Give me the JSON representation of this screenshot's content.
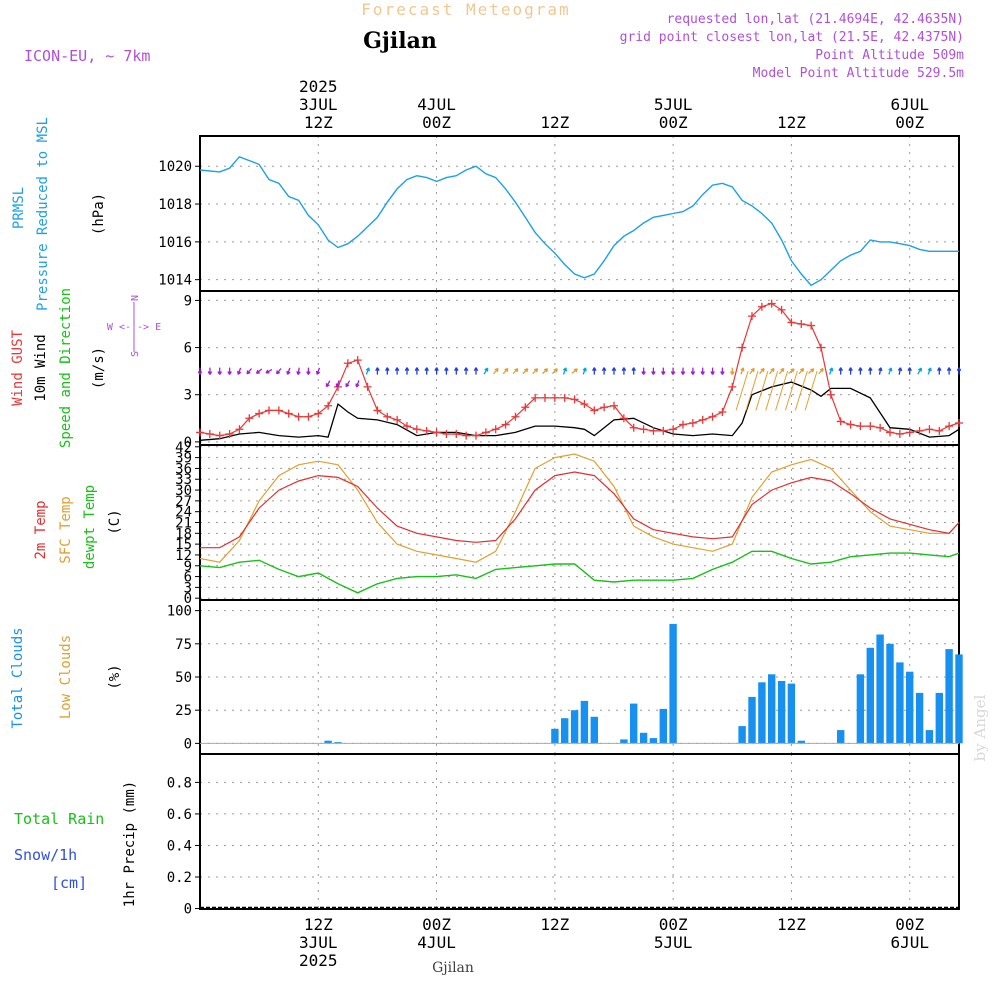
{
  "header": {
    "product": "Forecast Meteogram",
    "location": "Gjilan",
    "model": "ICON-EU, ~ 7km",
    "requested": "requested lon,lat (21.4694E, 42.4635N)",
    "grid_point": "grid point closest lon,lat (21.5E, 42.4375N)",
    "point_alt": "Point Altitude 509m",
    "model_alt": "Model Point Altitude 529.5m",
    "footer_location": "Gjilan",
    "watermark": "by Angel"
  },
  "time_axis": {
    "ticks": [
      {
        "hour": 12,
        "top": [
          "2025",
          "3JUL",
          "12Z"
        ],
        "bottom": [
          "12Z",
          "3JUL",
          "2025"
        ]
      },
      {
        "hour": 24,
        "top": [
          "4JUL",
          "00Z"
        ],
        "bottom": [
          "00Z",
          "4JUL"
        ]
      },
      {
        "hour": 36,
        "top": [
          "12Z"
        ],
        "bottom": [
          "12Z"
        ]
      },
      {
        "hour": 48,
        "top": [
          "5JUL",
          "00Z"
        ],
        "bottom": [
          "00Z",
          "5JUL"
        ]
      },
      {
        "hour": 60,
        "top": [
          "12Z"
        ],
        "bottom": [
          "12Z"
        ]
      },
      {
        "hour": 72,
        "top": [
          "6JUL",
          "00Z"
        ],
        "bottom": [
          "00Z",
          "6JUL"
        ]
      }
    ]
  },
  "panel_labels": {
    "pressure": {
      "lines": [
        "PRMSL",
        "Pressure Reduced to MSL"
      ],
      "unit": "(hPa)"
    },
    "wind": {
      "gust": "Wind GUST",
      "wind10": "10m Wind",
      "speed_dir": "Speed and Direction",
      "unit": "(m/s)",
      "compass": [
        "N",
        "W <-|-> E",
        "S"
      ]
    },
    "temp": {
      "t2m": "2m Temp",
      "sfc": "SFC Temp",
      "dewpt": "dewpt Temp",
      "unit": "(C)"
    },
    "clouds": {
      "total": "Total Clouds",
      "low": "Low Clouds",
      "unit": "(%)"
    },
    "precip": {
      "total_rain": "Total Rain",
      "snow": "Snow/1h",
      "snow_unit": "[cm]",
      "axis": "1hr Precip (mm)"
    }
  },
  "colors": {
    "pressure": "#1ea0e6",
    "gust": "#e83838",
    "wind10": "#000000",
    "t2m": "#e03030",
    "sfc": "#e0a030",
    "dewpt": "#18c018",
    "clouds": "#1890f0",
    "low_clouds": "#e0a030",
    "title_orange": "#f0c890",
    "violet": "#b050d8"
  },
  "chart_data": [
    {
      "type": "line",
      "name": "PRMSL",
      "ylabel": "(hPa)",
      "ylim": [
        1013.4,
        1021.6
      ],
      "yticks": [
        1014,
        1016,
        1018,
        1020
      ],
      "x_unit": "hours from 00Z 3JUL 2025",
      "x": [
        0,
        2,
        3,
        4,
        5,
        6,
        7,
        8,
        9,
        10,
        11,
        12,
        13,
        14,
        15,
        16,
        17,
        18,
        19,
        20,
        21,
        22,
        23,
        24,
        25,
        26,
        27,
        28,
        29,
        30,
        31,
        32,
        33,
        34,
        35,
        36,
        37,
        38,
        39,
        40,
        41,
        42,
        43,
        44,
        45,
        46,
        47,
        48,
        49,
        50,
        51,
        52,
        53,
        54,
        55,
        56,
        57,
        58,
        59,
        60,
        61,
        62,
        63,
        64,
        65,
        66,
        67,
        68,
        69,
        70,
        71,
        72,
        73,
        74,
        75,
        76,
        77
      ],
      "values": [
        1019.8,
        1019.7,
        1019.9,
        1020.5,
        1020.3,
        1020.1,
        1019.3,
        1019.1,
        1018.4,
        1018.2,
        1017.4,
        1016.9,
        1016.1,
        1015.7,
        1015.9,
        1016.3,
        1016.8,
        1017.3,
        1018.1,
        1018.8,
        1019.3,
        1019.5,
        1019.4,
        1019.2,
        1019.4,
        1019.5,
        1019.8,
        1020.0,
        1019.6,
        1019.4,
        1018.8,
        1018.1,
        1017.3,
        1016.5,
        1015.9,
        1015.4,
        1014.8,
        1014.3,
        1014.1,
        1014.3,
        1015.0,
        1015.8,
        1016.3,
        1016.6,
        1017.0,
        1017.3,
        1017.4,
        1017.5,
        1017.6,
        1017.9,
        1018.5,
        1019.0,
        1019.1,
        1018.9,
        1018.2,
        1017.9,
        1017.5,
        1017.0,
        1016.1,
        1015.0,
        1014.3,
        1013.7,
        1014.0,
        1014.5,
        1015.0,
        1015.3,
        1015.5,
        1016.1,
        1016.0,
        1016.0,
        1015.9,
        1015.8,
        1015.6,
        1015.5,
        1015.5,
        1015.5,
        1015.5
      ]
    },
    {
      "type": "line",
      "name": "Wind GUST / 10m Wind",
      "ylabel": "(m/s)",
      "ylim": [
        -0.2,
        9.6
      ],
      "yticks": [
        0,
        3,
        6,
        9
      ],
      "x_unit": "hours from 00Z 3JUL 2025",
      "x_gust": [
        0,
        1,
        2,
        3,
        4,
        5,
        6,
        7,
        8,
        9,
        10,
        11,
        12,
        13,
        14,
        15,
        16,
        17,
        18,
        19,
        20,
        21,
        22,
        23,
        24,
        25,
        26,
        27,
        28,
        29,
        30,
        31,
        32,
        33,
        34,
        35,
        36,
        37,
        38,
        39,
        40,
        41,
        42,
        43,
        44,
        45,
        46,
        47,
        48,
        49,
        50,
        51,
        52,
        53,
        54,
        55,
        56,
        57,
        58,
        59,
        60,
        61,
        62,
        63,
        64,
        65,
        66,
        67,
        68,
        69,
        70,
        71,
        72,
        73,
        74,
        75,
        76,
        77
      ],
      "gust": [
        0.6,
        0.5,
        0.4,
        0.5,
        0.8,
        1.5,
        1.8,
        2.0,
        2.0,
        1.8,
        1.6,
        1.6,
        1.8,
        2.3,
        3.5,
        5.0,
        5.2,
        3.5,
        2.0,
        1.6,
        1.4,
        1.0,
        0.8,
        0.7,
        0.6,
        0.5,
        0.5,
        0.4,
        0.4,
        0.6,
        0.8,
        1.1,
        1.6,
        2.2,
        2.8,
        2.8,
        2.8,
        2.8,
        2.7,
        2.4,
        2.0,
        2.2,
        2.3,
        1.5,
        0.9,
        0.8,
        0.7,
        0.7,
        0.8,
        1.1,
        1.2,
        1.4,
        1.6,
        1.9,
        3.5,
        6.0,
        8.0,
        8.6,
        8.8,
        8.4,
        7.6,
        7.5,
        7.4,
        6.0,
        3.0,
        1.3,
        1.1,
        1.0,
        1.0,
        0.9,
        0.6,
        0.5,
        0.6,
        0.7,
        0.8,
        0.7,
        1.0,
        1.2
      ],
      "x_wind": [
        0,
        2,
        4,
        6,
        8,
        10,
        12,
        13,
        14,
        15,
        16,
        18,
        20,
        22,
        24,
        26,
        28,
        30,
        32,
        34,
        36,
        38,
        39,
        40,
        42,
        44,
        46,
        48,
        50,
        52,
        54,
        55,
        56,
        58,
        60,
        62,
        63,
        64,
        66,
        68,
        70,
        72,
        74,
        76,
        77
      ],
      "wind10": [
        0.1,
        0.2,
        0.5,
        0.6,
        0.4,
        0.3,
        0.4,
        0.3,
        2.4,
        1.9,
        1.5,
        1.4,
        1.1,
        0.4,
        0.6,
        0.6,
        0.4,
        0.4,
        0.6,
        1.0,
        1.0,
        0.9,
        0.8,
        0.4,
        1.4,
        1.5,
        0.9,
        0.5,
        0.4,
        0.5,
        0.4,
        1.2,
        3.0,
        3.5,
        3.8,
        3.3,
        2.9,
        3.4,
        3.4,
        2.8,
        0.9,
        0.8,
        0.3,
        0.4,
        0.8
      ],
      "direction_arrows_x": [
        0,
        1,
        2,
        3,
        4,
        5,
        6,
        7,
        8,
        9,
        10,
        11,
        12,
        13,
        14,
        15,
        16,
        17,
        18,
        19,
        20,
        21,
        22,
        23,
        24,
        25,
        26,
        27,
        28,
        29,
        30,
        31,
        32,
        33,
        34,
        35,
        36,
        37,
        38,
        39,
        40,
        41,
        42,
        43,
        44,
        45,
        46,
        47,
        48,
        49,
        50,
        51,
        52,
        53,
        54,
        55,
        56,
        57,
        58,
        59,
        60,
        61,
        62,
        63,
        64,
        65,
        66,
        67,
        68,
        69,
        70,
        71,
        72,
        73,
        74,
        75,
        76,
        77
      ],
      "direction_arrows_deg": [
        180,
        180,
        180,
        180,
        200,
        220,
        230,
        240,
        220,
        200,
        190,
        180,
        200,
        210,
        200,
        210,
        200,
        20,
        0,
        0,
        0,
        0,
        0,
        0,
        0,
        0,
        0,
        0,
        0,
        30,
        40,
        40,
        45,
        45,
        45,
        45,
        45,
        20,
        50,
        20,
        0,
        0,
        0,
        0,
        0,
        180,
        180,
        180,
        180,
        180,
        180,
        180,
        180,
        180,
        180,
        20,
        40,
        40,
        40,
        40,
        50,
        40,
        50,
        40,
        20,
        0,
        0,
        0,
        0,
        10,
        20,
        10,
        0,
        30,
        20,
        0,
        0,
        0
      ]
    },
    {
      "type": "line",
      "name": "Temperature",
      "ylabel": "(C)",
      "ylim": [
        -0.5,
        42.5
      ],
      "yticks": [
        0,
        3,
        6,
        9,
        12,
        15,
        18,
        21,
        24,
        27,
        30,
        33,
        36,
        39,
        42
      ],
      "x_unit": "hours from 00Z 3JUL 2025",
      "x": [
        0,
        2,
        4,
        6,
        8,
        10,
        12,
        14,
        16,
        18,
        20,
        22,
        24,
        26,
        28,
        30,
        32,
        34,
        36,
        38,
        40,
        42,
        44,
        46,
        48,
        50,
        52,
        54,
        56,
        58,
        60,
        62,
        64,
        66,
        68,
        70,
        72,
        74,
        76,
        77
      ],
      "t2m": [
        14,
        14,
        17,
        25,
        30,
        32.5,
        34,
        33.5,
        31,
        25,
        20,
        18,
        17,
        16,
        15.5,
        16,
        22,
        30,
        34,
        35,
        34,
        29,
        22,
        19,
        18,
        17,
        16.5,
        17,
        26,
        30,
        32,
        33.5,
        32.5,
        29,
        25,
        22,
        20.5,
        19,
        18,
        21
      ],
      "sfc": [
        11,
        10,
        16,
        27,
        34,
        37,
        38,
        37,
        30,
        21,
        15,
        13,
        12,
        11,
        10,
        13,
        24,
        36,
        39,
        40,
        38,
        31,
        20,
        17,
        15,
        14,
        13,
        15,
        28,
        35,
        37,
        38.5,
        36,
        30,
        24,
        20,
        19,
        18,
        18,
        21
      ],
      "dewpt": [
        9,
        8.5,
        10,
        10.5,
        8,
        6,
        7,
        4,
        1.5,
        4,
        5.5,
        6,
        6,
        6.5,
        5.5,
        8,
        8.5,
        9,
        9.5,
        9.5,
        5,
        4.5,
        5,
        5,
        5,
        5.5,
        8,
        10,
        13,
        13,
        11,
        9.5,
        10,
        11.5,
        12,
        12.5,
        12.5,
        12,
        11.5,
        12.5
      ]
    },
    {
      "type": "bar",
      "name": "Total Clouds",
      "ylabel": "(%)",
      "ylim": [
        -8,
        108
      ],
      "yticks": [
        0,
        25,
        50,
        75,
        100
      ],
      "x_unit": "hours from 00Z 3JUL 2025",
      "x": [
        13,
        14,
        36,
        37,
        38,
        39,
        40,
        43,
        44,
        45,
        46,
        47,
        48,
        55,
        56,
        57,
        58,
        59,
        60,
        61,
        65,
        67,
        68,
        69,
        70,
        71,
        72,
        73,
        74,
        75,
        76,
        77
      ],
      "values": [
        2,
        1,
        11,
        19,
        25,
        32,
        20,
        3,
        30,
        8,
        4,
        26,
        90,
        13,
        35,
        46,
        52,
        47,
        45,
        2,
        10,
        52,
        72,
        82,
        75,
        61,
        54,
        38,
        10,
        38,
        71,
        67
      ]
    },
    {
      "type": "line",
      "name": "1hr Precip",
      "ylabel": "1hr Precip (mm)",
      "ylim": [
        -0.003,
        0.98
      ],
      "yticks": [
        0,
        0.2,
        0.4,
        0.6,
        0.8
      ],
      "x_unit": "hours from 00Z 3JUL 2025",
      "x": [
        0,
        77
      ],
      "values": [
        0,
        0
      ]
    }
  ]
}
